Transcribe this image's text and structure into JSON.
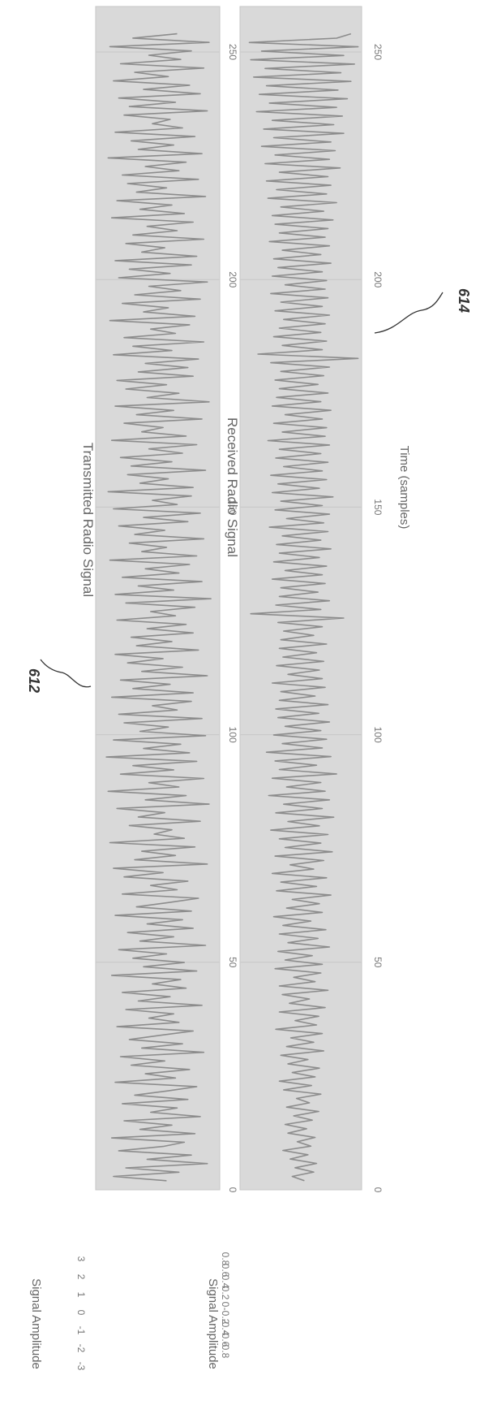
{
  "chart_data": [
    {
      "type": "line",
      "ref_label": "612",
      "title": "Transmitted Radio Signal",
      "ylabel": "Signal Amplitude",
      "xlabel": "",
      "xlim": [
        0,
        260
      ],
      "ylim": [
        -3.5,
        3.5
      ],
      "x_ticks": [
        "0",
        "50",
        "100",
        "150",
        "200",
        "250"
      ],
      "y_ticks": [
        "3",
        "2",
        "1",
        "0",
        "-1",
        "-2",
        "-3"
      ],
      "series": [
        {
          "values": [
            0.5,
            -2.5,
            1.2,
            -1.8,
            2.8,
            -0.6,
            1.9,
            -2.2,
            0.3,
            1.5,
            -2.6,
            2.1,
            -1.0,
            0.8,
            -1.9,
            2.4,
            -0.4,
            1.1,
            -2.0,
            1.7,
            -1.3,
            0.6,
            2.2,
            -2.4,
            1.0,
            -0.7,
            1.8,
            -1.5,
            0.4,
            -2.1,
            2.6,
            -0.9,
            1.4,
            -1.6,
            0.2,
            2.0,
            -2.3,
            1.2,
            -0.5,
            0.9,
            -1.8,
            2.5,
            -1.1,
            0.7,
            -2.0,
            1.6,
            -0.3,
            1.3,
            -2.6,
            2.2,
            -0.8,
            1.5,
            -1.4,
            0.5,
            -2.2,
            2.7,
            -1.0,
            0.9,
            -1.7,
            2.0,
            -0.6,
            1.4,
            -2.4,
            1.9,
            -1.2,
            0.6,
            2.3,
            -2.0,
            1.1,
            -0.4,
            1.7,
            -1.9,
            0.3,
            -2.5,
            2.8,
            -1.3,
            1.0,
            -0.9,
            2.1,
            -2.7,
            1.5,
            -0.2,
            0.8,
            -1.6,
            2.4,
            -1.1,
            0.4,
            -2.3,
            2.9,
            -0.7,
            1.6,
            -2.8,
            1.2,
            -0.5,
            2.6,
            -2.1,
            0.9,
            -1.4,
            2.2,
            -2.9,
            1.8,
            -0.8,
            1.3,
            -2.5,
            2.7,
            -1.0,
            0.6,
            -1.9,
            2.5,
            -2.2,
            1.1,
            -0.3,
            1.9,
            -2.6,
            2.0,
            -1.4,
            0.7,
            -2.1,
            2.8,
            -0.9,
            1.4,
            -1.7,
            0.3,
            -2.4,
            2.3,
            -1.2,
            0.8,
            -1.5,
            2.0,
            -0.6,
            1.6,
            -2.3,
            1.0,
            -0.4,
            2.1,
            -1.8,
            3.0,
            -2.4,
            0.9,
            -1.1,
            2.5,
            -2.0,
            1.2,
            -0.7,
            1.8,
            -2.7,
            2.2,
            -0.9,
            0.5,
            -1.6,
            2.6,
            -1.3,
            0.4,
            -2.2,
            1.7,
            -0.8,
            2.4,
            -2.5,
            1.1,
            -0.3,
            1.9,
            -2.8,
            2.0,
            -1.0,
            0.6,
            -1.7,
            2.7,
            -1.5,
            0.8,
            -2.1,
            1.4,
            -0.5,
            2.2,
            -2.6,
            1.6,
            -0.9,
            0.3,
            -1.9,
            2.5,
            -1.2,
            0.9,
            -2.4,
            2.9,
            -0.6,
            1.2,
            -1.8,
            0.5,
            -2.3,
            2.0,
            -1.1,
            1.7,
            -0.7,
            2.3,
            -2.5,
            0.8,
            -1.4,
            2.6,
            -1.9,
            1.0,
            -0.4,
            1.8,
            -2.7,
            2.1,
            -0.8,
            0.6,
            -2.0,
            2.4,
            -1.3,
            1.3,
            -0.5,
            2.8,
            -2.2,
            0.7,
            -1.6,
            1.9,
            -2.4,
            2.2,
            -0.9,
            0.4,
            -1.8,
            2.6,
            -1.4,
            1.1,
            -0.6,
            2.0,
            -2.6,
            1.5,
            -1.0,
            0.8,
            -2.3,
            2.7,
            -1.2,
            0.5,
            -1.7,
            2.3,
            -2.0,
            1.2,
            -0.7,
            1.6,
            -2.8,
            2.5,
            -1.1,
            0.9,
            -1.5,
            2.1,
            -2.4,
            1.4,
            -0.3,
            0.7,
            -1.9,
            2.8,
            -1.6,
            1.0,
            -2.2,
            2.4,
            -0.8,
            1.8,
            -2.5,
            0.6,
            -1.3,
            2.6,
            -2.1,
            1.3,
            -0.5,
            1.9,
            -2.7,
            2.9,
            -1.4,
            1.1
          ]
        }
      ]
    },
    {
      "type": "line",
      "ref_label": "614",
      "title": "Received Radio Signal",
      "ylabel": "Signal Amplitude",
      "xlabel": "Time (samples)",
      "xlim": [
        0,
        260
      ],
      "ylim": [
        -0.85,
        0.85
      ],
      "x_ticks": [
        "0",
        "50",
        "100",
        "150",
        "200",
        "250"
      ],
      "y_ticks": [
        "0.8",
        "0.6",
        "0.4",
        "0.2",
        "0",
        "-0.2",
        "-0.4",
        "-0.6",
        "-0.8"
      ],
      "series": [
        {
          "values": [
            0.05,
            -0.12,
            0.18,
            -0.08,
            0.22,
            -0.15,
            0.1,
            -0.25,
            0.14,
            -0.05,
            0.2,
            -0.18,
            0.08,
            -0.22,
            0.16,
            -0.1,
            0.25,
            -0.2,
            0.12,
            -0.06,
            0.28,
            -0.24,
            0.15,
            -0.3,
            0.2,
            -0.12,
            0.26,
            -0.18,
            0.1,
            -0.28,
            0.32,
            -0.2,
            0.18,
            -0.14,
            0.3,
            -0.35,
            0.22,
            -0.08,
            0.25,
            -0.3,
            0.34,
            -0.16,
            0.12,
            -0.26,
            0.38,
            -0.3,
            0.2,
            -0.1,
            0.28,
            -0.36,
            0.3,
            -0.22,
            0.16,
            -0.32,
            0.4,
            -0.18,
            0.24,
            -0.3,
            0.35,
            -0.25,
            0.14,
            -0.38,
            0.3,
            -0.2,
            0.26,
            -0.12,
            0.42,
            -0.34,
            0.22,
            -0.28,
            0.36,
            -0.4,
            0.18,
            -0.15,
            0.32,
            -0.36,
            0.44,
            -0.22,
            0.28,
            -0.3,
            0.38,
            -0.42,
            0.26,
            -0.18,
            0.46,
            -0.35,
            0.3,
            -0.24,
            0.4,
            -0.45,
            0.34,
            -0.2,
            0.28,
            -0.4,
            0.5,
            -0.3,
            0.22,
            -0.36,
            0.42,
            -0.48,
            0.3,
            -0.26,
            0.36,
            -0.38,
            0.28,
            -0.22,
            0.4,
            -0.32,
            0.25,
            -0.35,
            0.38,
            -0.3,
            0.2,
            -0.28,
            0.34,
            -0.4,
            0.3,
            -0.18,
            0.26,
            -0.34,
            0.32,
            -0.25,
            0.22,
            -0.3,
            0.36,
            -0.28,
            0.18,
            -0.24,
            0.3,
            -0.32,
            0.6,
            -0.7,
            0.28,
            -0.35,
            0.4,
            -0.3,
            0.24,
            -0.28,
            0.34,
            -0.4,
            0.3,
            -0.22,
            0.36,
            -0.38,
            0.26,
            -0.3,
            0.42,
            -0.34,
            0.28,
            -0.26,
            0.38,
            -0.44,
            0.32,
            -0.2,
            0.4,
            -0.36,
            0.3,
            -0.28,
            0.45,
            -0.4,
            0.26,
            -0.32,
            0.36,
            -0.42,
            0.3,
            -0.24,
            0.38,
            -0.35,
            0.28,
            -0.3,
            0.4,
            -0.46,
            0.34,
            -0.26,
            0.36,
            -0.38,
            0.3,
            -0.22,
            0.42,
            -0.4,
            0.28,
            -0.34,
            0.38,
            -0.3,
            0.24,
            -0.36,
            0.32,
            -0.28,
            0.4,
            -0.42,
            0.8,
            -0.6,
            0.3,
            -0.26,
            0.36,
            -0.38,
            0.28,
            -0.3,
            0.34,
            -0.24,
            0.4,
            -0.36,
            0.3,
            -0.28,
            0.38,
            -0.42,
            0.34,
            -0.22,
            0.36,
            -0.4,
            0.3,
            -0.32,
            0.42,
            -0.38,
            0.28,
            -0.26,
            0.4,
            -0.44,
            0.34,
            -0.3,
            0.38,
            -0.36,
            0.45,
            -0.4,
            0.32,
            -0.28,
            0.5,
            -0.46,
            0.36,
            -0.34,
            0.42,
            -0.48,
            0.38,
            -0.3,
            0.55,
            -0.5,
            0.4,
            -0.36,
            0.48,
            -0.55,
            0.42,
            -0.38,
            0.6,
            -0.52,
            0.46,
            -0.4,
            0.58,
            -0.62,
            0.5,
            -0.44,
            0.65,
            -0.58,
            0.52,
            -0.48,
            0.7,
            -0.66,
            0.56,
            -0.5,
            0.75,
            -0.7,
            0.6,
            -0.55,
            0.8,
            -0.72,
            0.5,
            0.7
          ]
        }
      ]
    }
  ]
}
